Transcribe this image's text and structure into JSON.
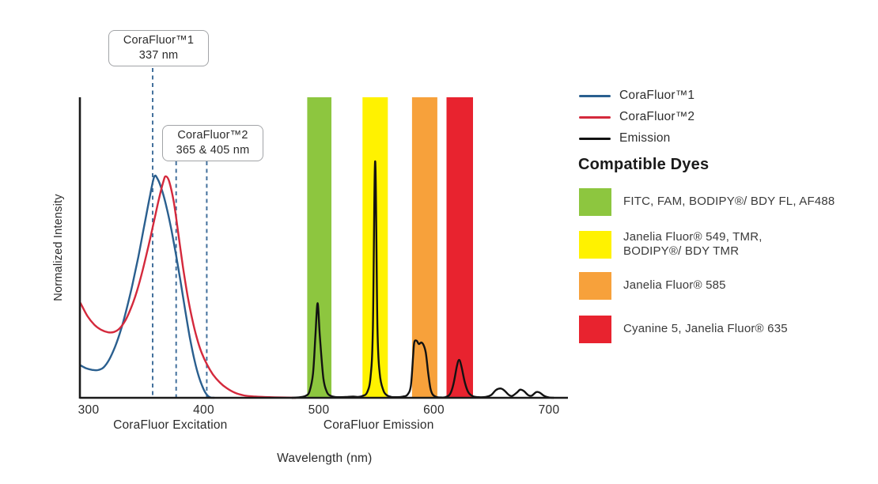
{
  "callouts": [
    {
      "line1": "CoraFluor™1",
      "line2": "337 nm"
    },
    {
      "line1": "CoraFluor™2",
      "line2": "365 & 405 nm"
    }
  ],
  "legend": {
    "items": [
      {
        "label": "CoraFluor™1",
        "color": "#2a5f8f"
      },
      {
        "label": "CoraFluor™2",
        "color": "#d4293c"
      },
      {
        "label": "Emission",
        "color": "#121212"
      }
    ]
  },
  "dyes": {
    "heading": "Compatible Dyes",
    "items": [
      {
        "color": "#8dc63f",
        "lines": [
          "FITC, FAM, BODIPY®/ BDY FL, AF488"
        ]
      },
      {
        "color": "#fff200",
        "lines": [
          "Janelia Fluor® 549, TMR,",
          "BODIPY®/ BDY TMR"
        ]
      },
      {
        "color": "#f7a13b",
        "lines": [
          "Janelia Fluor® 585"
        ]
      },
      {
        "color": "#e8232f",
        "lines": [
          "Cyanine 5, Janelia Fluor® 635"
        ]
      }
    ]
  },
  "chart_data": {
    "type": "line",
    "title": "",
    "xlabel": "Wavelength (nm)",
    "ylabel": "Normalized Intensity",
    "x_ticks": [
      300,
      400,
      500,
      600,
      700
    ],
    "xlim": [
      293,
      715
    ],
    "ylim": [
      0,
      1
    ],
    "grid": false,
    "x_axis_sections": [
      {
        "label": "CoraFluor Excitation",
        "center_nm": 371
      },
      {
        "label": "CoraFluor Emission",
        "center_nm": 552
      }
    ],
    "dashed_markers": {
      "color": "#44719d",
      "positions_nm": [
        355.7,
        376.1,
        402.7
      ],
      "labeled_wavelengths": "337, 365 & 405 nm"
    },
    "filter_bands": [
      {
        "name": "fitc-fam-bodipyfl-af488",
        "color": "#8dc63f",
        "range_nm": [
          490,
          511
        ]
      },
      {
        "name": "jf549-tmr-bodipytmr",
        "color": "#fff200",
        "range_nm": [
          538,
          560
        ]
      },
      {
        "name": "jf585",
        "color": "#f7a13b",
        "range_nm": [
          581,
          603
        ]
      },
      {
        "name": "cy5-jf635",
        "color": "#e8232f",
        "range_nm": [
          611,
          634
        ]
      }
    ],
    "series": [
      {
        "name": "CoraFluor™1",
        "kind": "excitation",
        "color": "#2a5f8f",
        "peak_nm": 357,
        "points": [
          [
            293,
            0.108
          ],
          [
            298,
            0.098
          ],
          [
            303,
            0.093
          ],
          [
            308,
            0.092
          ],
          [
            313,
            0.101
          ],
          [
            318,
            0.128
          ],
          [
            323,
            0.17
          ],
          [
            328,
            0.225
          ],
          [
            333,
            0.295
          ],
          [
            338,
            0.375
          ],
          [
            343,
            0.465
          ],
          [
            348,
            0.565
          ],
          [
            353,
            0.665
          ],
          [
            357,
            0.735
          ],
          [
            360,
            0.728
          ],
          [
            364,
            0.688
          ],
          [
            368,
            0.63
          ],
          [
            372,
            0.558
          ],
          [
            376,
            0.475
          ],
          [
            380,
            0.385
          ],
          [
            384,
            0.29
          ],
          [
            388,
            0.2
          ],
          [
            392,
            0.125
          ],
          [
            396,
            0.068
          ],
          [
            400,
            0.028
          ],
          [
            403,
            0.009
          ],
          [
            406,
            0.001
          ],
          [
            409,
            0
          ]
        ]
      },
      {
        "name": "CoraFluor™2",
        "kind": "excitation",
        "color": "#d4293c",
        "peak_nm": 367,
        "points": [
          [
            293,
            0.315
          ],
          [
            299,
            0.272
          ],
          [
            305,
            0.243
          ],
          [
            311,
            0.226
          ],
          [
            317,
            0.218
          ],
          [
            322,
            0.219
          ],
          [
            327,
            0.231
          ],
          [
            332,
            0.258
          ],
          [
            337,
            0.3
          ],
          [
            342,
            0.355
          ],
          [
            347,
            0.425
          ],
          [
            352,
            0.505
          ],
          [
            357,
            0.59
          ],
          [
            361,
            0.66
          ],
          [
            365,
            0.72
          ],
          [
            367,
            0.737
          ],
          [
            370,
            0.72
          ],
          [
            374,
            0.652
          ],
          [
            378,
            0.545
          ],
          [
            382,
            0.435
          ],
          [
            386,
            0.34
          ],
          [
            390,
            0.262
          ],
          [
            394,
            0.2
          ],
          [
            398,
            0.152
          ],
          [
            403,
            0.11
          ],
          [
            408,
            0.078
          ],
          [
            414,
            0.051
          ],
          [
            420,
            0.032
          ],
          [
            427,
            0.017
          ],
          [
            435,
            0.008
          ],
          [
            445,
            0.004
          ],
          [
            457,
            0.002
          ],
          [
            468,
            0.001
          ],
          [
            480,
            0
          ]
        ]
      },
      {
        "name": "Emission",
        "kind": "emission",
        "color": "#121212",
        "peak_nm": 549,
        "points": [
          [
            477,
            0
          ],
          [
            484,
            0.002
          ],
          [
            489,
            0.007
          ],
          [
            492,
            0.022
          ],
          [
            495,
            0.08
          ],
          [
            497,
            0.2
          ],
          [
            499,
            0.315
          ],
          [
            501,
            0.2
          ],
          [
            504,
            0.065
          ],
          [
            507,
            0.02
          ],
          [
            510,
            0.007
          ],
          [
            514,
            0.003
          ],
          [
            519,
            0.002
          ],
          [
            525,
            0.003
          ],
          [
            530,
            0.004
          ],
          [
            534,
            0.003
          ],
          [
            538,
            0.006
          ],
          [
            542,
            0.018
          ],
          [
            545,
            0.07
          ],
          [
            547,
            0.23
          ],
          [
            549,
            0.787
          ],
          [
            551,
            0.23
          ],
          [
            553,
            0.08
          ],
          [
            556,
            0.026
          ],
          [
            559,
            0.009
          ],
          [
            563,
            0.003
          ],
          [
            568,
            0.002
          ],
          [
            573,
            0.004
          ],
          [
            577,
            0.01
          ],
          [
            580,
            0.04
          ],
          [
            582,
            0.14
          ],
          [
            583,
            0.185
          ],
          [
            585,
            0.19
          ],
          [
            587,
            0.179
          ],
          [
            589,
            0.184
          ],
          [
            591,
            0.176
          ],
          [
            593,
            0.15
          ],
          [
            595,
            0.085
          ],
          [
            597,
            0.032
          ],
          [
            599,
            0.011
          ],
          [
            602,
            0.003
          ],
          [
            606,
            0.001
          ],
          [
            610,
            0.002
          ],
          [
            614,
            0.012
          ],
          [
            617,
            0.045
          ],
          [
            620,
            0.105
          ],
          [
            622,
            0.126
          ],
          [
            624,
            0.104
          ],
          [
            627,
            0.05
          ],
          [
            630,
            0.018
          ],
          [
            634,
            0.005
          ],
          [
            639,
            0.002
          ],
          [
            645,
            0.003
          ],
          [
            650,
            0.01
          ],
          [
            654,
            0.026
          ],
          [
            658,
            0.031
          ],
          [
            661,
            0.025
          ],
          [
            665,
            0.01
          ],
          [
            668,
            0.006
          ],
          [
            672,
            0.017
          ],
          [
            675,
            0.027
          ],
          [
            678,
            0.023
          ],
          [
            682,
            0.009
          ],
          [
            685,
            0.007
          ],
          [
            689,
            0.019
          ],
          [
            692,
            0.017
          ],
          [
            696,
            0.006
          ],
          [
            700,
            0.001
          ],
          [
            704,
            0
          ]
        ]
      }
    ]
  }
}
